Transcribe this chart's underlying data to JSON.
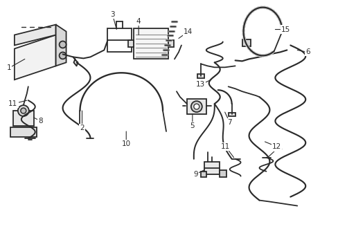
{
  "background_color": "#ffffff",
  "line_color": "#2a2a2a",
  "line_width": 1.3,
  "label_fontsize": 7.5,
  "fig_width": 4.89,
  "fig_height": 3.6,
  "dpi": 100
}
